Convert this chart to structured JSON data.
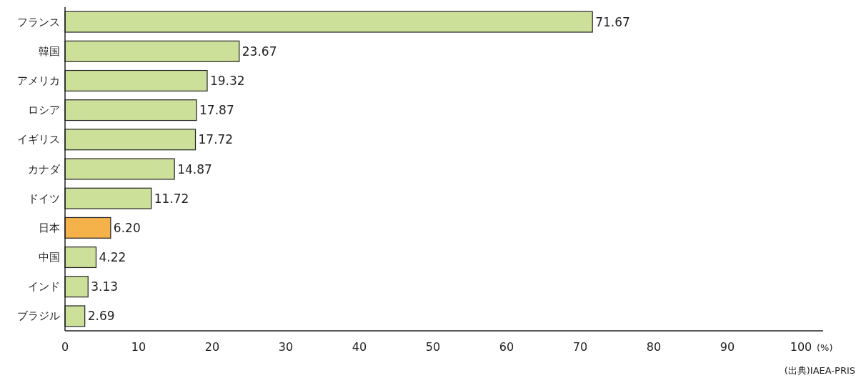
{
  "chart_data": {
    "type": "bar",
    "orientation": "horizontal",
    "xlabel": "(%)",
    "categories": [
      "フランス",
      "韓国",
      "アメリカ",
      "ロシア",
      "イギリス",
      "カナダ",
      "ドイツ",
      "日本",
      "中国",
      "インド",
      "ブラジル"
    ],
    "values": [
      71.67,
      23.67,
      19.32,
      17.87,
      17.72,
      14.87,
      11.72,
      6.2,
      4.22,
      3.13,
      2.69
    ],
    "colors": [
      "#cde09a",
      "#cde09a",
      "#cde09a",
      "#cde09a",
      "#cde09a",
      "#cde09a",
      "#cde09a",
      "#f5b24a",
      "#cde09a",
      "#cde09a",
      "#cde09a"
    ],
    "value_labels": [
      "71.67",
      "23.67",
      "19.32",
      "17.87",
      "17.72",
      "14.87",
      "11.72",
      "6.20",
      "4.22",
      "3.13",
      "2.69"
    ],
    "xlim": [
      0,
      103
    ],
    "xticks": [
      0,
      10,
      20,
      30,
      40,
      50,
      60,
      70,
      80,
      90,
      100
    ],
    "annotations": [
      "(出典)IAEA-PRIS"
    ]
  }
}
